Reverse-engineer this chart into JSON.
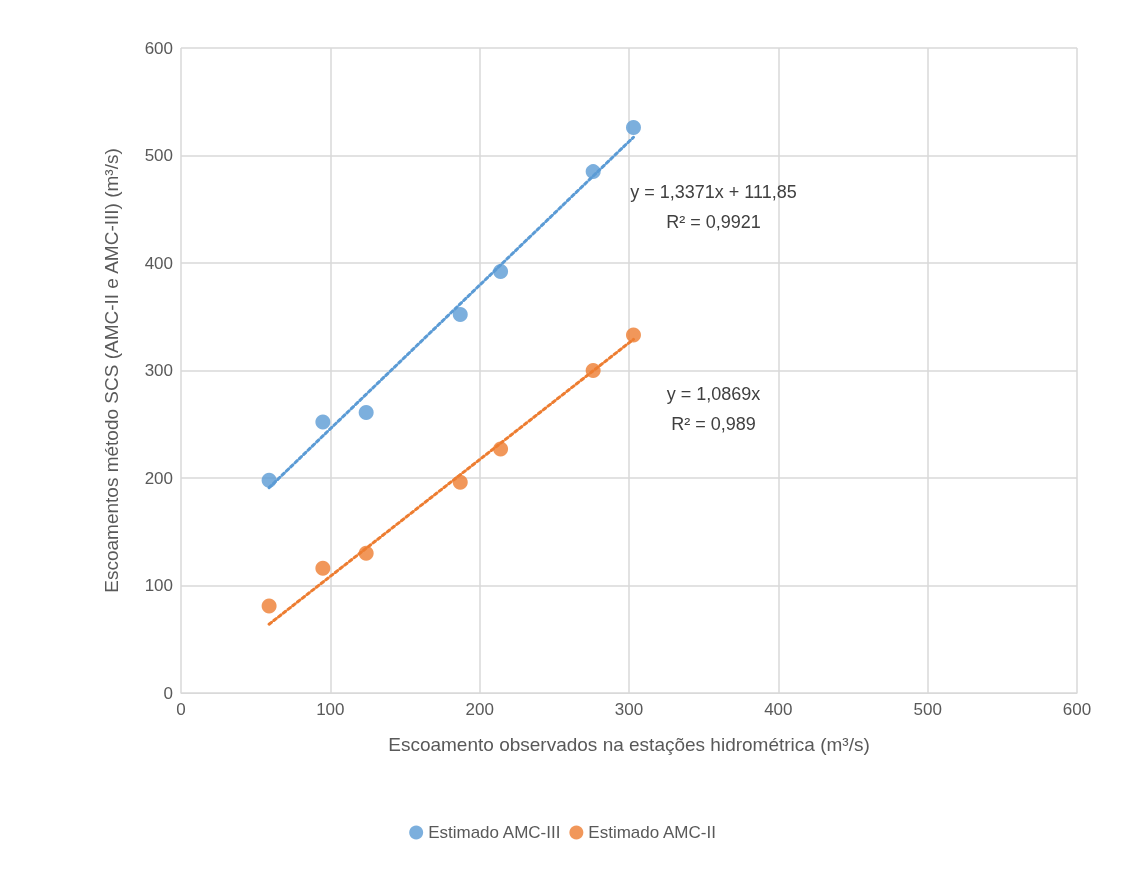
{
  "chart_data": {
    "type": "scatter",
    "xlabel": "Escoamento observados na estações hidrométrica (m³/s)",
    "ylabel": "Escoamentos método SCS (AMC-II e AMC-III) (m³/s)",
    "xlim": [
      0,
      600
    ],
    "xticks": [
      0,
      100,
      200,
      300,
      400,
      500,
      600
    ],
    "ylim": [
      0,
      600
    ],
    "yticks": [
      0,
      100,
      200,
      300,
      400,
      500,
      600
    ],
    "grid": true,
    "legend": "bottom",
    "marker": "circle",
    "series": [
      {
        "name": "Estimado AMC-III",
        "color": "#5b9bd5",
        "x": [
          59,
          95,
          124,
          187,
          214,
          276,
          303
        ],
        "values": [
          198,
          252,
          261,
          352,
          392,
          485,
          526
        ]
      },
      {
        "name": "Estimado AMC-II",
        "color": "#ed7d31",
        "x": [
          59,
          95,
          124,
          187,
          214,
          276,
          303
        ],
        "values": [
          81,
          116,
          130,
          196,
          227,
          300,
          333
        ]
      },
      {
        "type": "line",
        "color": "#5b9bd5",
        "line_style": "dotted",
        "marker": "none",
        "x": [
          59,
          303
        ],
        "values": [
          191,
          517
        ]
      },
      {
        "type": "line",
        "color": "#ed7d31",
        "line_style": "dotted",
        "marker": "none",
        "x": [
          59,
          303
        ],
        "values": [
          64,
          329
        ]
      }
    ],
    "annotations": [
      "y = 1,3371x + 111,85",
      "R² = 0,9921",
      "y = 1,0869x",
      "R² = 0,989"
    ]
  }
}
